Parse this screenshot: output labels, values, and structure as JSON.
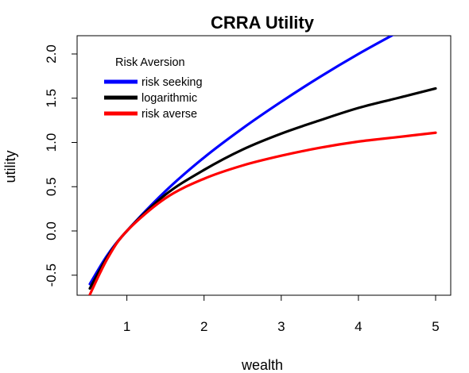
{
  "chart_data": {
    "type": "line",
    "title": "CRRA Utility",
    "xlabel": "wealth",
    "ylabel": "utility",
    "xlim": [
      0.5,
      5
    ],
    "ylim": [
      -0.7,
      2.05
    ],
    "xticks": [
      1,
      2,
      3,
      4,
      5
    ],
    "xtick_labels": [
      "1",
      "2",
      "3",
      "4",
      "5"
    ],
    "yticks": [
      -0.5,
      0,
      0.5,
      1,
      1.5,
      2
    ],
    "ytick_labels": [
      "-0.5",
      "0.0",
      "0.5",
      "1.0",
      "1.5",
      "2.0"
    ],
    "grid": false,
    "legend": {
      "title": "Risk Aversion",
      "position": "top-left",
      "entries": [
        {
          "label": "risk seeking",
          "color": "#0000ff"
        },
        {
          "label": "logarithmic",
          "color": "#000000"
        },
        {
          "label": "risk averse",
          "color": "#ff0000"
        }
      ]
    },
    "x": [
      0.52,
      0.75,
      1,
      1.5,
      2,
      2.5,
      3,
      3.5,
      4,
      4.5,
      5
    ],
    "series": [
      {
        "name": "risk seeking",
        "color": "#0000ff",
        "values": [
          -0.6,
          -0.27,
          0,
          0.45,
          0.83,
          1.16,
          1.46,
          1.74,
          2.0,
          2.24,
          2.47
        ]
      },
      {
        "name": "logarithmic",
        "color": "#000000",
        "values": [
          -0.65,
          -0.29,
          0,
          0.41,
          0.69,
          0.92,
          1.1,
          1.25,
          1.39,
          1.5,
          1.61
        ]
      },
      {
        "name": "risk averse",
        "color": "#ff0000",
        "values": [
          -0.72,
          -0.31,
          0,
          0.37,
          0.59,
          0.74,
          0.85,
          0.94,
          1.01,
          1.06,
          1.11
        ]
      }
    ]
  }
}
